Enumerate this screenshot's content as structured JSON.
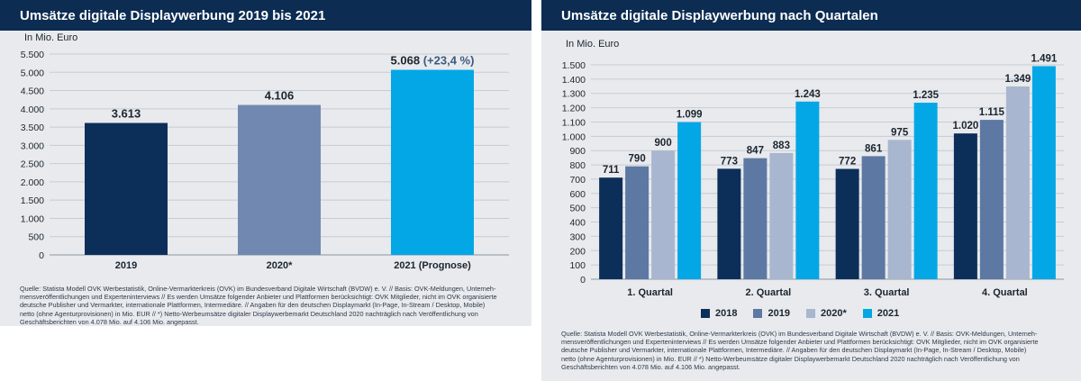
{
  "chart_data": [
    {
      "type": "bar",
      "title": "Umsätze digitale Displaywerbung 2019 bis 2021",
      "unit_label": "In Mio. Euro",
      "categories": [
        "2019",
        "2020*",
        "2021 (Prognose)"
      ],
      "values": [
        3613,
        4106,
        5068
      ],
      "value_labels": [
        "3.613",
        "4.106",
        "5.068"
      ],
      "annotation": "(+23,4 %)",
      "colors": [
        "#0c2f5a",
        "#7188b0",
        "#04a7e6"
      ],
      "ylim": [
        0,
        5500
      ],
      "yticks": [
        {
          "v": 0,
          "label": "0"
        },
        {
          "v": 500,
          "label": "500"
        },
        {
          "v": 1000,
          "label": "1.000"
        },
        {
          "v": 1500,
          "label": "1.500"
        },
        {
          "v": 2000,
          "label": "2.000"
        },
        {
          "v": 2500,
          "label": "2.500"
        },
        {
          "v": 3000,
          "label": "3.000"
        },
        {
          "v": 3500,
          "label": "3.500"
        },
        {
          "v": 4000,
          "label": "4.000"
        },
        {
          "v": 4500,
          "label": "4.500"
        },
        {
          "v": 5000,
          "label": "5.000"
        },
        {
          "v": 5500,
          "label": "5.500"
        }
      ],
      "grid": true,
      "source": [
        "Quelle: Statista Modell OVK Werbestatistik, Online-Vermarkterkreis (OVK) im Bundesverband Digitale Wirtschaft (BVDW) e. V. // Basis: OVK-Meldungen, Unterneh-",
        "mensveröffentlichungen und Experteninterviews // Es werden Umsätze folgender Anbieter und Plattformen berücksichtigt: OVK Mitglieder, nicht im OVK organisierte",
        "deutsche Publisher und Vermarkter, internationale Plattformen, Intermediäre. // Angaben für den deutschen Displaymarkt (In-Page, In-Stream / Desktop, Mobile)",
        "netto (ohne Agenturprovisionen) in Mio. EUR // *) Netto-Werbeumsätze digitaler Displaywerbemarkt Deutschland 2020 nachträglich nach Veröffentlichung von",
        "Geschäftsberichten von 4.078 Mio. auf 4.106 Mio. angepasst."
      ]
    },
    {
      "type": "bar",
      "title": "Umsätze digitale Displaywerbung nach Quartalen",
      "unit_label": "In Mio. Euro",
      "categories": [
        "1. Quartal",
        "2. Quartal",
        "3. Quartal",
        "4. Quartal"
      ],
      "series": [
        {
          "name": "2018",
          "color": "#0c2f5a",
          "values": [
            711,
            773,
            772,
            1020
          ],
          "labels": [
            "711",
            "773",
            "772",
            "1.020"
          ]
        },
        {
          "name": "2019",
          "color": "#5d78a2",
          "values": [
            790,
            847,
            861,
            1115
          ],
          "labels": [
            "790",
            "847",
            "861",
            "1.115"
          ]
        },
        {
          "name": "2020*",
          "color": "#a9b6cf",
          "values": [
            900,
            883,
            975,
            1349
          ],
          "labels": [
            "900",
            "883",
            "975",
            "1.349"
          ]
        },
        {
          "name": "2021",
          "color": "#04a7e6",
          "values": [
            1099,
            1243,
            1235,
            1491
          ],
          "labels": [
            "1.099",
            "1.243",
            "1.235",
            "1.491"
          ]
        }
      ],
      "ylim": [
        0,
        1500
      ],
      "yticks": [
        {
          "v": 0,
          "label": "0"
        },
        {
          "v": 100,
          "label": "100"
        },
        {
          "v": 200,
          "label": "200"
        },
        {
          "v": 300,
          "label": "300"
        },
        {
          "v": 400,
          "label": "400"
        },
        {
          "v": 500,
          "label": "500"
        },
        {
          "v": 600,
          "label": "600"
        },
        {
          "v": 700,
          "label": "700"
        },
        {
          "v": 800,
          "label": "800"
        },
        {
          "v": 900,
          "label": "900"
        },
        {
          "v": 1000,
          "label": "1.000"
        },
        {
          "v": 1100,
          "label": "1.100"
        },
        {
          "v": 1200,
          "label": "1.200"
        },
        {
          "v": 1300,
          "label": "1.300"
        },
        {
          "v": 1400,
          "label": "1.400"
        },
        {
          "v": 1500,
          "label": "1.500"
        }
      ],
      "grid": true,
      "legend_position": "bottom",
      "source": [
        "Quelle: Statista Modell OVK Werbestatistik, Online-Vermarkterkreis (OVK) im Bundesverband Digitale Wirtschaft (BVDW) e. V. // Basis: OVK-Meldungen, Unterneh-",
        "mensveröffentlichungen und Experteninterviews // Es werden Umsätze folgender Anbieter und Plattformen berücksichtigt: OVK Mitglieder, nicht im OVK organisierte",
        "deutsche Publisher und Vermarkter, internationale Plattformen, Intermediäre. // Angaben für den deutschen Displaymarkt (In-Page, In-Stream / Desktop, Mobile)",
        "netto (ohne Agenturprovisionen) in Mio. EUR // *) Netto-Werbeumsätze digitaler Displaywerbemarkt Deutschland 2020 nachträglich nach Veröffentlichung von",
        "Geschäftsberichten von 4.078 Mio. auf 4.106 Mio. angepasst."
      ]
    }
  ]
}
